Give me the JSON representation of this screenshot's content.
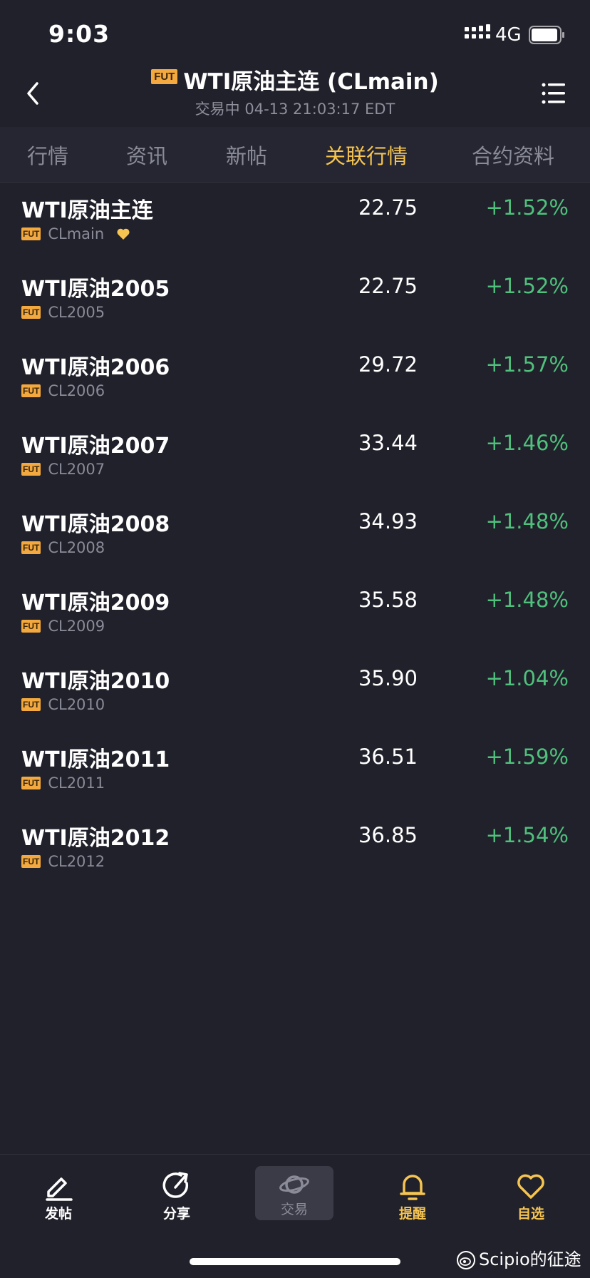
{
  "status_bar": {
    "time": "9:03",
    "network": "4G",
    "signal_icon": "signal-bars-icon",
    "battery_icon": "battery-icon"
  },
  "header": {
    "badge": "FUT",
    "title": "WTI原油主连 (CLmain)",
    "subtitle": "交易中 04-13 21:03:17 EDT",
    "back_icon": "chevron-left-icon",
    "menu_icon": "list-menu-icon"
  },
  "tabs": [
    {
      "label": "行情"
    },
    {
      "label": "资讯"
    },
    {
      "label": "新帖"
    },
    {
      "label": "关联行情",
      "active": true
    },
    {
      "label": "合约资料"
    }
  ],
  "rows": [
    {
      "name": "WTI原油主连",
      "badge": "FUT",
      "code": "CLmain",
      "price": "22.75",
      "change": "+1.52%",
      "favorited": true
    },
    {
      "name": "WTI原油2005",
      "badge": "FUT",
      "code": "CL2005",
      "price": "22.75",
      "change": "+1.52%"
    },
    {
      "name": "WTI原油2006",
      "badge": "FUT",
      "code": "CL2006",
      "price": "29.72",
      "change": "+1.57%"
    },
    {
      "name": "WTI原油2007",
      "badge": "FUT",
      "code": "CL2007",
      "price": "33.44",
      "change": "+1.46%"
    },
    {
      "name": "WTI原油2008",
      "badge": "FUT",
      "code": "CL2008",
      "price": "34.93",
      "change": "+1.48%"
    },
    {
      "name": "WTI原油2009",
      "badge": "FUT",
      "code": "CL2009",
      "price": "35.58",
      "change": "+1.48%"
    },
    {
      "name": "WTI原油2010",
      "badge": "FUT",
      "code": "CL2010",
      "price": "35.90",
      "change": "+1.04%"
    },
    {
      "name": "WTI原油2011",
      "badge": "FUT",
      "code": "CL2011",
      "price": "36.51",
      "change": "+1.59%"
    },
    {
      "name": "WTI原油2012",
      "badge": "FUT",
      "code": "CL2012",
      "price": "36.85",
      "change": "+1.54%"
    }
  ],
  "bottom_nav": [
    {
      "label": "发帖",
      "icon": "compose-icon"
    },
    {
      "label": "分享",
      "icon": "share-icon"
    },
    {
      "label": "交易",
      "icon": "planet-icon"
    },
    {
      "label": "提醒",
      "icon": "bell-icon"
    },
    {
      "label": "自选",
      "icon": "heart-icon"
    }
  ],
  "watermark": "Scipio的征途",
  "colors": {
    "background": "#21212b",
    "accent": "#f5c451",
    "positive": "#4fc17c",
    "badge": "#f3a93f",
    "muted": "#8a8b98"
  }
}
